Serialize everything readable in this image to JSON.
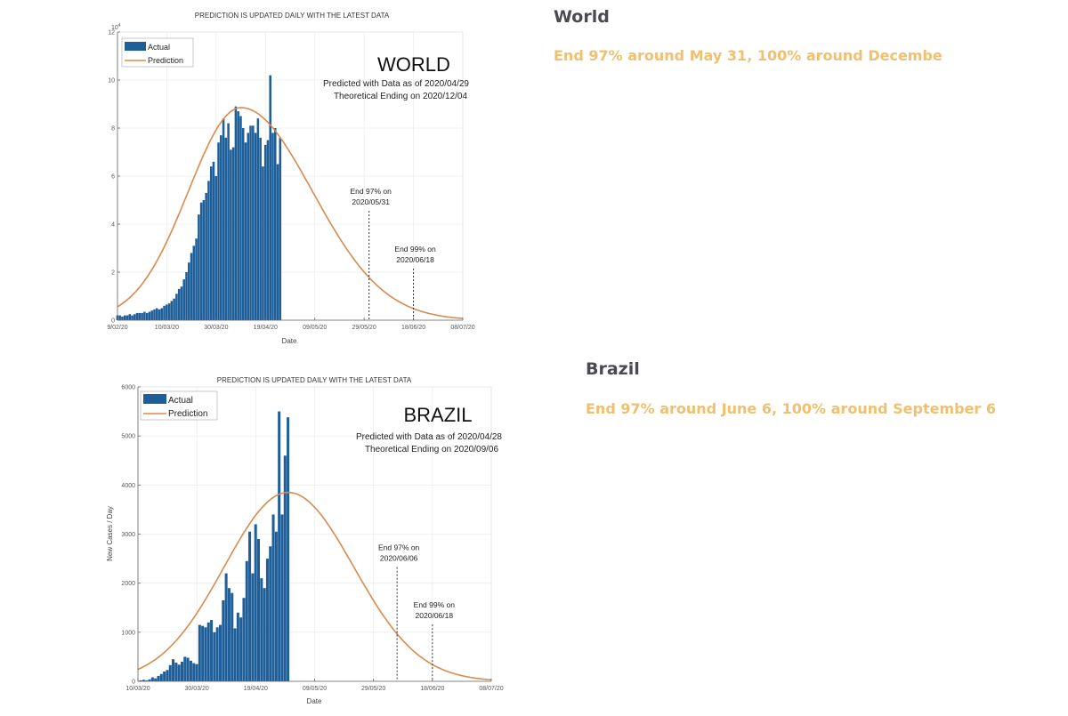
{
  "side_panel": {
    "world": {
      "title": "World",
      "summary": "End 97% around May 31, 100% around Decembe"
    },
    "brazil": {
      "title": "Brazil",
      "summary": "End 97% around June 6, 100% around September 6"
    }
  },
  "colors": {
    "bar": "#1f5f99",
    "prediction": "#d98a4e",
    "summary_text": "#f0c070",
    "heading_text": "#4a4a52"
  },
  "chart_data": [
    {
      "id": "world",
      "type": "bar",
      "title": "PREDICTION IS UPDATED DAILY WITH THE LATEST DATA",
      "region_label": "WORLD",
      "predicted_with": "Predicted with Data as of 2020/04/29",
      "theoretical_ending": "Theoretical Ending on 2020/12/04",
      "xlabel": "Date",
      "ylabel": "",
      "y_exponent_label": "×10⁴",
      "y_exponent_base": "10",
      "y_exponent_power": "4",
      "ylim": [
        0,
        12
      ],
      "y_ticks": [
        0,
        2,
        4,
        6,
        8,
        10,
        12
      ],
      "y_tick_labels": [
        "0",
        "2",
        "4",
        "6",
        "8",
        "10",
        "12"
      ],
      "x_unit": "days since 10/03/20 (tick spacing 20 days)",
      "xlim": [
        -20,
        120
      ],
      "x_ticks": [
        -20,
        0,
        20,
        40,
        60,
        80,
        100,
        120
      ],
      "x_tick_labels": [
        "9/02/20",
        "10/03/20",
        "30/03/20",
        "19/04/20",
        "09/05/20",
        "29/05/20",
        "18/06/20",
        "08/07/20"
      ],
      "grid": true,
      "legend": {
        "position": "top-left",
        "entries": [
          "Actual",
          "Prediction"
        ]
      },
      "series": [
        {
          "name": "Actual",
          "type": "bar",
          "x_start": -20,
          "values": [
            0.2,
            0.2,
            0.15,
            0.2,
            0.2,
            0.25,
            0.2,
            0.25,
            0.3,
            0.3,
            0.3,
            0.35,
            0.3,
            0.35,
            0.4,
            0.45,
            0.5,
            0.45,
            0.5,
            0.6,
            0.65,
            0.7,
            0.8,
            0.9,
            1.1,
            1.3,
            1.4,
            1.7,
            2.0,
            2.4,
            2.8,
            3.1,
            3.4,
            4.4,
            4.9,
            5.0,
            5.3,
            5.8,
            6.4,
            6.6,
            6.0,
            7.4,
            7.7,
            8.4,
            7.6,
            8.2,
            7.1,
            7.2,
            8.9,
            8.7,
            8.5,
            8.0,
            7.4,
            7.8,
            8.1,
            8.1,
            7.8,
            8.4,
            7.6,
            6.4,
            7.3,
            7.5,
            10.2,
            7.8,
            8.0,
            6.5,
            7.6
          ]
        },
        {
          "name": "Prediction",
          "type": "line",
          "model": "asymmetric bell",
          "peak_x": 30,
          "peak_y": 8.85,
          "start_y": 0.25,
          "end_y": 0.1
        }
      ],
      "annotations": [
        {
          "x": 82,
          "text_line1": "End 97% on",
          "text_line2": "2020/05/31",
          "style": "dashed-vertical"
        },
        {
          "x": 100,
          "text_line1": "End 99% on",
          "text_line2": "2020/06/18",
          "style": "dashed-vertical"
        }
      ]
    },
    {
      "id": "brazil",
      "type": "bar",
      "title": "PREDICTION IS UPDATED DAILY WITH THE LATEST DATA",
      "region_label": "BRAZIL",
      "predicted_with": "Predicted with Data as of 2020/04/28",
      "theoretical_ending": "Theoretical Ending on 2020/09/06",
      "xlabel": "Date",
      "ylabel": "New Cases / Day",
      "ylim": [
        0,
        6000
      ],
      "y_ticks": [
        0,
        1000,
        2000,
        3000,
        4000,
        5000,
        6000
      ],
      "y_tick_labels": [
        "0",
        "1000",
        "2000",
        "3000",
        "4000",
        "5000",
        "6000"
      ],
      "x_unit": "days since 10/03/20",
      "xlim": [
        0,
        120
      ],
      "x_ticks": [
        0,
        20,
        40,
        60,
        80,
        100,
        120
      ],
      "x_tick_labels": [
        "10/03/20",
        "30/03/20",
        "19/04/20",
        "09/05/20",
        "29/05/20",
        "18/06/20",
        "08/07/20"
      ],
      "grid": true,
      "legend": {
        "position": "top-left",
        "entries": [
          "Actual",
          "Prediction"
        ]
      },
      "series": [
        {
          "name": "Actual",
          "type": "bar",
          "x_start": 1,
          "values": [
            20,
            30,
            20,
            40,
            80,
            60,
            110,
            150,
            200,
            230,
            330,
            450,
            380,
            340,
            400,
            500,
            480,
            420,
            370,
            350,
            1150,
            1130,
            1100,
            1200,
            1250,
            1000,
            1100,
            1150,
            1650,
            2200,
            1900,
            1800,
            1080,
            1400,
            1300,
            1700,
            2450,
            3050,
            2200,
            3200,
            2900,
            2100,
            1900,
            2500,
            2750,
            3400,
            3050,
            5500,
            3400,
            4600,
            5380
          ]
        },
        {
          "name": "Prediction",
          "type": "line",
          "model": "asymmetric bell",
          "peak_x": 51,
          "peak_y": 3850,
          "start_y": 90,
          "end_y": 30
        }
      ],
      "annotations": [
        {
          "x": 88,
          "text_line1": "End 97% on",
          "text_line2": "2020/06/06",
          "style": "dashed-vertical"
        },
        {
          "x": 100,
          "text_line1": "End 99% on",
          "text_line2": "2020/06/18",
          "style": "dashed-vertical"
        }
      ]
    }
  ]
}
